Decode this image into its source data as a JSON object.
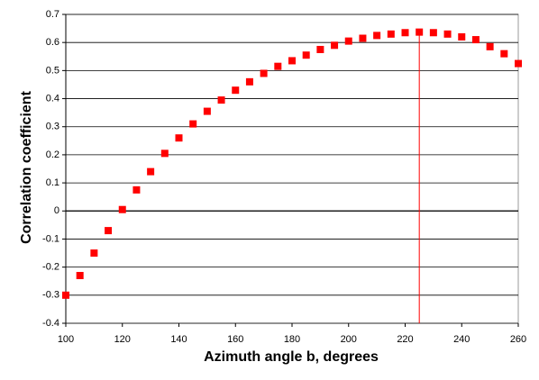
{
  "chart_data": {
    "type": "scatter",
    "x_label": "Azimuth angle b, degrees",
    "y_label": "Correlation coefficient",
    "series": [
      {
        "color": "#ff0000",
        "x": [
          100,
          105,
          110,
          115,
          120,
          125,
          130,
          135,
          140,
          145,
          150,
          155,
          160,
          165,
          170,
          175,
          180,
          185,
          190,
          195,
          200,
          205,
          210,
          215,
          220,
          225,
          230,
          235,
          240,
          245,
          250,
          255,
          260
        ],
        "values": [
          -0.3,
          -0.23,
          -0.15,
          -0.07,
          0.005,
          0.075,
          0.14,
          0.205,
          0.26,
          0.31,
          0.355,
          0.395,
          0.43,
          0.46,
          0.49,
          0.515,
          0.535,
          0.555,
          0.575,
          0.59,
          0.605,
          0.615,
          0.625,
          0.63,
          0.635,
          0.637,
          0.635,
          0.63,
          0.62,
          0.61,
          0.585,
          0.56,
          0.525
        ]
      }
    ],
    "vline": {
      "x": 225,
      "color": "#ff0000"
    },
    "xlim": [
      100,
      260
    ],
    "xticks": [
      100,
      120,
      140,
      160,
      180,
      200,
      220,
      240,
      260
    ],
    "ylim": [
      -0.4,
      0.7
    ],
    "yticks": [
      -0.4,
      -0.3,
      -0.2,
      -0.1,
      0,
      0.1,
      0.2,
      0.3,
      0.4,
      0.5,
      0.6,
      0.7
    ],
    "grid": true
  }
}
